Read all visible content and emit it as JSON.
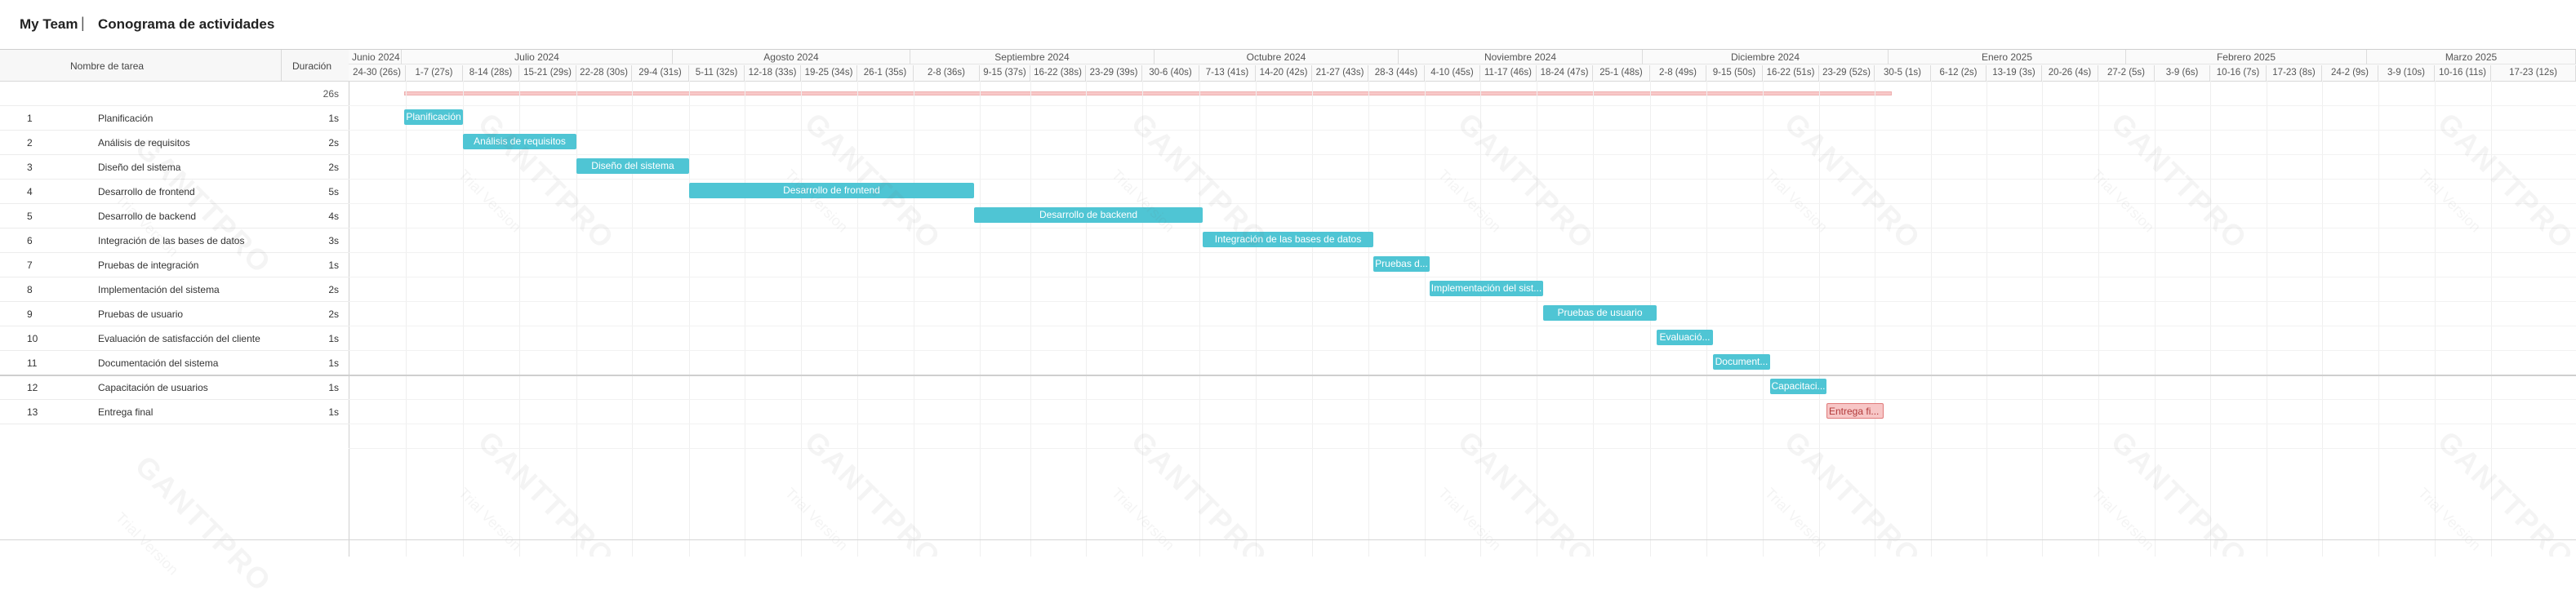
{
  "header": {
    "team": "My Team",
    "separator": "|",
    "project_title": "Conograma de actividades"
  },
  "columns": {
    "task_name": "Nombre de tarea",
    "duration": "Duración"
  },
  "summary": {
    "duration": "26s"
  },
  "tasks": [
    {
      "num": "1",
      "name": "Planificación",
      "duration": "1s",
      "bar_label": "Planificación"
    },
    {
      "num": "2",
      "name": "Análisis de requisitos",
      "duration": "2s",
      "bar_label": "Análisis de requisitos"
    },
    {
      "num": "3",
      "name": "Diseño del sistema",
      "duration": "2s",
      "bar_label": "Diseño del sistema"
    },
    {
      "num": "4",
      "name": "Desarrollo de frontend",
      "duration": "5s",
      "bar_label": "Desarrollo de frontend"
    },
    {
      "num": "5",
      "name": "Desarrollo de backend",
      "duration": "4s",
      "bar_label": "Desarrollo de backend"
    },
    {
      "num": "6",
      "name": "Integración de las bases de datos",
      "duration": "3s",
      "bar_label": "Integración de las bases de datos"
    },
    {
      "num": "7",
      "name": "Pruebas de integración",
      "duration": "1s",
      "bar_label": "Pruebas d..."
    },
    {
      "num": "8",
      "name": "Implementación del sistema",
      "duration": "2s",
      "bar_label": "Implementación del sist..."
    },
    {
      "num": "9",
      "name": "Pruebas de usuario",
      "duration": "2s",
      "bar_label": "Pruebas de usuario"
    },
    {
      "num": "10",
      "name": "Evaluación de satisfacción del cliente",
      "duration": "1s",
      "bar_label": "Evaluació..."
    },
    {
      "num": "11",
      "name": "Documentación del sistema",
      "duration": "1s",
      "bar_label": "Document..."
    },
    {
      "num": "12",
      "name": "Capacitación de usuarios",
      "duration": "1s",
      "bar_label": "Capacitaci..."
    },
    {
      "num": "13",
      "name": "Entrega final",
      "duration": "1s",
      "bar_label": "Entrega fi..."
    }
  ],
  "months": [
    "Junio 2024",
    "Julio 2024",
    "Agosto 2024",
    "Septiembre 2024",
    "Octubre 2024",
    "Noviembre 2024",
    "Diciembre 2024",
    "Enero 2025",
    "Febrero 2025",
    "Marzo 2025"
  ],
  "weeks": [
    "24-30 (26s)",
    "1-7 (27s)",
    "8-14 (28s)",
    "15-21 (29s)",
    "22-28 (30s)",
    "29-4 (31s)",
    "5-11 (32s)",
    "12-18 (33s)",
    "19-25 (34s)",
    "26-1 (35s)",
    "2-8 (36s)",
    "9-15 (37s)",
    "16-22 (38s)",
    "23-29 (39s)",
    "30-6 (40s)",
    "7-13 (41s)",
    "14-20 (42s)",
    "21-27 (43s)",
    "28-3 (44s)",
    "4-10 (45s)",
    "11-17 (46s)",
    "18-24 (47s)",
    "25-1 (48s)",
    "2-8 (49s)",
    "9-15 (50s)",
    "16-22 (51s)",
    "23-29 (52s)",
    "30-5 (1s)",
    "6-12 (2s)",
    "13-19 (3s)",
    "20-26 (4s)",
    "27-2 (5s)",
    "3-9 (6s)",
    "10-16 (7s)",
    "17-23 (8s)",
    "24-2 (9s)",
    "3-9 (10s)",
    "10-16 (11s)",
    "17-23 (12s)"
  ],
  "watermark": {
    "logo": "GANTTPRO",
    "sub": "Trial Version"
  },
  "colors": {
    "task_bar": "#4fc5d4",
    "milestone": "#f7c6c6",
    "summary_bar": "#f8c8c8"
  }
}
